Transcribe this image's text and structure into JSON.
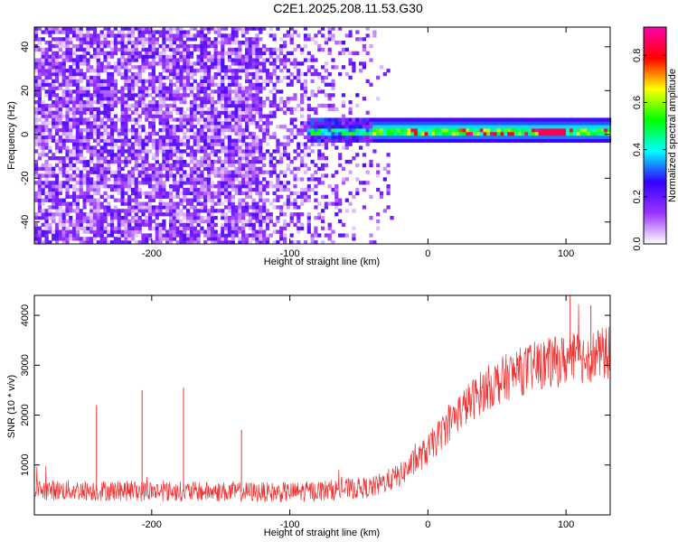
{
  "title": "C2E1.2025.208.11.53.G30",
  "chart_data": [
    {
      "type": "heatmap",
      "xlabel": "Height of straight line (km)",
      "ylabel": "Frequency (Hz)",
      "xlim": [
        -285,
        132
      ],
      "ylim": [
        -50,
        49
      ],
      "xticks": [
        -200,
        -100,
        0,
        100
      ],
      "yticks": [
        -40,
        -20,
        0,
        20,
        40
      ],
      "colorbar": {
        "label": "Normalized spectral amplitude",
        "range": [
          0,
          0.92
        ],
        "ticks": [
          0.0,
          0.2,
          0.4,
          0.6,
          0.8
        ],
        "colors": [
          "#ffffff",
          "#9933ff",
          "#3300ff",
          "#00ffff",
          "#00ff00",
          "#ffff00",
          "#ff0000",
          "#ff00aa"
        ]
      },
      "features": {
        "noise_region_x_end": -30,
        "signal_line_frequency": 1,
        "signal_line_x_start": -90,
        "signal_line_x_end": 132,
        "peak_amplitude": 0.92
      }
    },
    {
      "type": "line",
      "xlabel": "Height of straight line (km)",
      "ylabel": "SNR (10 * v/v)",
      "xlim": [
        -285,
        132
      ],
      "ylim": [
        0,
        4400
      ],
      "xticks": [
        -200,
        -100,
        0,
        100
      ],
      "yticks": [
        1000,
        2000,
        3000,
        4000
      ],
      "color": "#ee3333",
      "trend": [
        {
          "x": -285,
          "y": 500
        },
        {
          "x": -100,
          "y": 450
        },
        {
          "x": -40,
          "y": 550
        },
        {
          "x": -20,
          "y": 800
        },
        {
          "x": 0,
          "y": 1300
        },
        {
          "x": 20,
          "y": 2000
        },
        {
          "x": 40,
          "y": 2500
        },
        {
          "x": 60,
          "y": 2800
        },
        {
          "x": 80,
          "y": 3000
        },
        {
          "x": 100,
          "y": 3100
        },
        {
          "x": 132,
          "y": 3250
        }
      ],
      "spikes": [
        {
          "x": -240,
          "y": 2200
        },
        {
          "x": -207,
          "y": 2500
        },
        {
          "x": -177,
          "y": 2550
        },
        {
          "x": -135,
          "y": 1700
        },
        {
          "x": 103,
          "y": 4400
        },
        {
          "x": 118,
          "y": 4200
        }
      ]
    }
  ]
}
